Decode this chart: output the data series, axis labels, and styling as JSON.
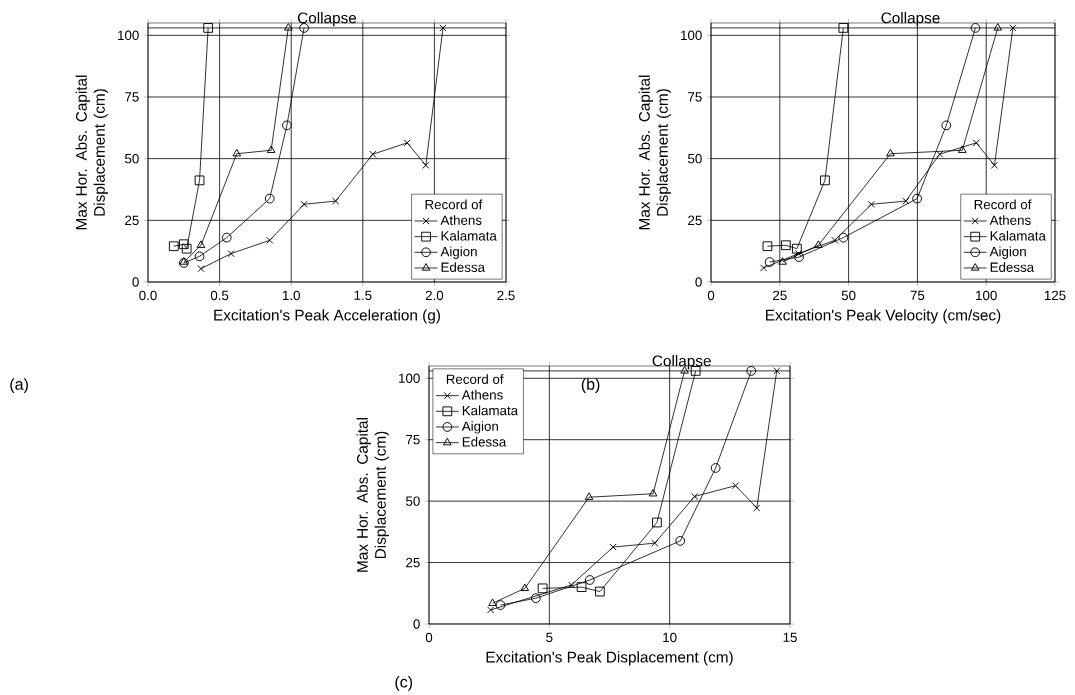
{
  "chart_data": [
    {
      "type": "line",
      "xlabel": "Excitation's Peak Acceleration (g)",
      "ylabel": "Max Hor. Abs. Capital Displacement (cm)",
      "legend_title": "Record of",
      "legend": "bottom right",
      "grid": true,
      "xlim": [
        0,
        2.5
      ],
      "xticks": [
        {
          "value": 0,
          "label": "0.0"
        },
        {
          "value": 0.5,
          "label": "0.5"
        },
        {
          "value": 1,
          "label": "1.0"
        },
        {
          "value": 1.5,
          "label": "1.5"
        },
        {
          "value": 2,
          "label": "2.0"
        },
        {
          "value": 2.5,
          "label": "2.5"
        }
      ],
      "ylim": [
        0,
        105
      ],
      "yticks": [
        0,
        25,
        50,
        75,
        100
      ],
      "ref_lines": [
        {
          "axis": "y",
          "value": 103,
          "label": "Collapse"
        }
      ],
      "annotations": [
        "(a)"
      ],
      "series": [
        {
          "name": "Athens",
          "color": "#000000",
          "marker": "cross",
          "x": [
            0.37,
            0.58,
            0.85,
            1.09,
            1.31,
            1.57,
            1.81,
            1.94,
            2.06
          ],
          "values": [
            5.4,
            11.5,
            16.9,
            31.5,
            32.8,
            51.8,
            56.4,
            47.3,
            103
          ]
        },
        {
          "name": "Kalamata",
          "color": "#000000",
          "marker": "square",
          "x": [
            0.18,
            0.25,
            0.27,
            0.36,
            0.42
          ],
          "values": [
            14.5,
            15.3,
            13.5,
            41.2,
            103
          ]
        },
        {
          "name": "Aigion",
          "color": "#000000",
          "marker": "circle",
          "x": [
            0.25,
            0.36,
            0.55,
            0.85,
            0.97,
            1.09
          ],
          "values": [
            7.7,
            10.4,
            18,
            33.8,
            63.5,
            103
          ]
        },
        {
          "name": "Edessa",
          "color": "#000000",
          "marker": "triangle",
          "x": [
            0.25,
            0.37,
            0.62,
            0.86,
            0.98
          ],
          "values": [
            8.1,
            14.9,
            52,
            53.4,
            103
          ]
        }
      ]
    },
    {
      "type": "line",
      "xlabel": "Excitation's Peak Velocity (cm/sec)",
      "ylabel": "Max Hor. Abs. Capital Displacement (cm)",
      "legend_title": "Record of",
      "legend": "bottom right",
      "grid": true,
      "xlim": [
        0,
        125
      ],
      "xticks": [
        0,
        25,
        50,
        75,
        100,
        125
      ],
      "ylim": [
        0,
        105
      ],
      "yticks": [
        0,
        25,
        50,
        75,
        100
      ],
      "ref_lines": [
        {
          "axis": "y",
          "value": 103,
          "label": "Collapse"
        }
      ],
      "annotations": [
        "(b)"
      ],
      "series": [
        {
          "name": "Athens",
          "color": "#000000",
          "marker": "cross",
          "x": [
            19.1,
            31.8,
            45,
            58.3,
            70.8,
            83.1,
            96.4,
            103,
            109.7
          ],
          "values": [
            5.7,
            11.5,
            16.9,
            31.5,
            32.8,
            51.8,
            56.4,
            47.3,
            103
          ]
        },
        {
          "name": "Kalamata",
          "color": "#000000",
          "marker": "square",
          "x": [
            20.5,
            27.2,
            31.2,
            41.4,
            48.1
          ],
          "values": [
            14.5,
            14.9,
            13.5,
            41.2,
            103
          ]
        },
        {
          "name": "Aigion",
          "color": "#000000",
          "marker": "circle",
          "x": [
            21.3,
            32,
            48.1,
            74.9,
            85.5,
            96.1
          ],
          "values": [
            8.1,
            10.1,
            18,
            33.8,
            63.5,
            103
          ]
        },
        {
          "name": "Edessa",
          "color": "#000000",
          "marker": "triangle",
          "x": [
            26,
            39,
            65.2,
            91.3,
            104.2
          ],
          "values": [
            8.1,
            14.9,
            52,
            53.4,
            103
          ]
        }
      ]
    },
    {
      "type": "line",
      "xlabel": "Excitation's Peak Displacement (cm)",
      "ylabel": "Max Hor. Abs. Capital Displacement (cm)",
      "legend_title": "Record of",
      "legend": "top left",
      "grid": true,
      "xlim": [
        0,
        15
      ],
      "xticks": [
        0,
        5,
        10,
        15
      ],
      "ylim": [
        0,
        105
      ],
      "yticks": [
        0,
        25,
        50,
        75,
        100
      ],
      "ref_lines": [
        {
          "axis": "y",
          "value": 103,
          "label": "Collapse"
        }
      ],
      "annotations": [
        "(c)"
      ],
      "series": [
        {
          "name": "Athens",
          "color": "#000000",
          "marker": "cross",
          "x": [
            2.56,
            5.92,
            7.65,
            9.38,
            11.04,
            12.74,
            13.62,
            14.45
          ],
          "values": [
            5.7,
            15.9,
            31.3,
            32.9,
            51.9,
            56.3,
            47.2,
            103
          ]
        },
        {
          "name": "Kalamata",
          "color": "#000000",
          "marker": "square",
          "x": [
            4.72,
            6.34,
            7.1,
            9.47,
            11.08
          ],
          "values": [
            14.5,
            15,
            13.2,
            41.3,
            103
          ]
        },
        {
          "name": "Aigion",
          "color": "#000000",
          "marker": "circle",
          "x": [
            2.97,
            4.44,
            6.68,
            10.44,
            11.91,
            13.39
          ],
          "values": [
            7.7,
            10.5,
            17.9,
            33.8,
            63.5,
            103
          ]
        },
        {
          "name": "Edessa",
          "color": "#000000",
          "marker": "triangle",
          "x": [
            2.64,
            3.98,
            6.65,
            9.31,
            10.62
          ],
          "values": [
            8.4,
            14.5,
            51.6,
            53,
            103
          ]
        }
      ]
    }
  ]
}
